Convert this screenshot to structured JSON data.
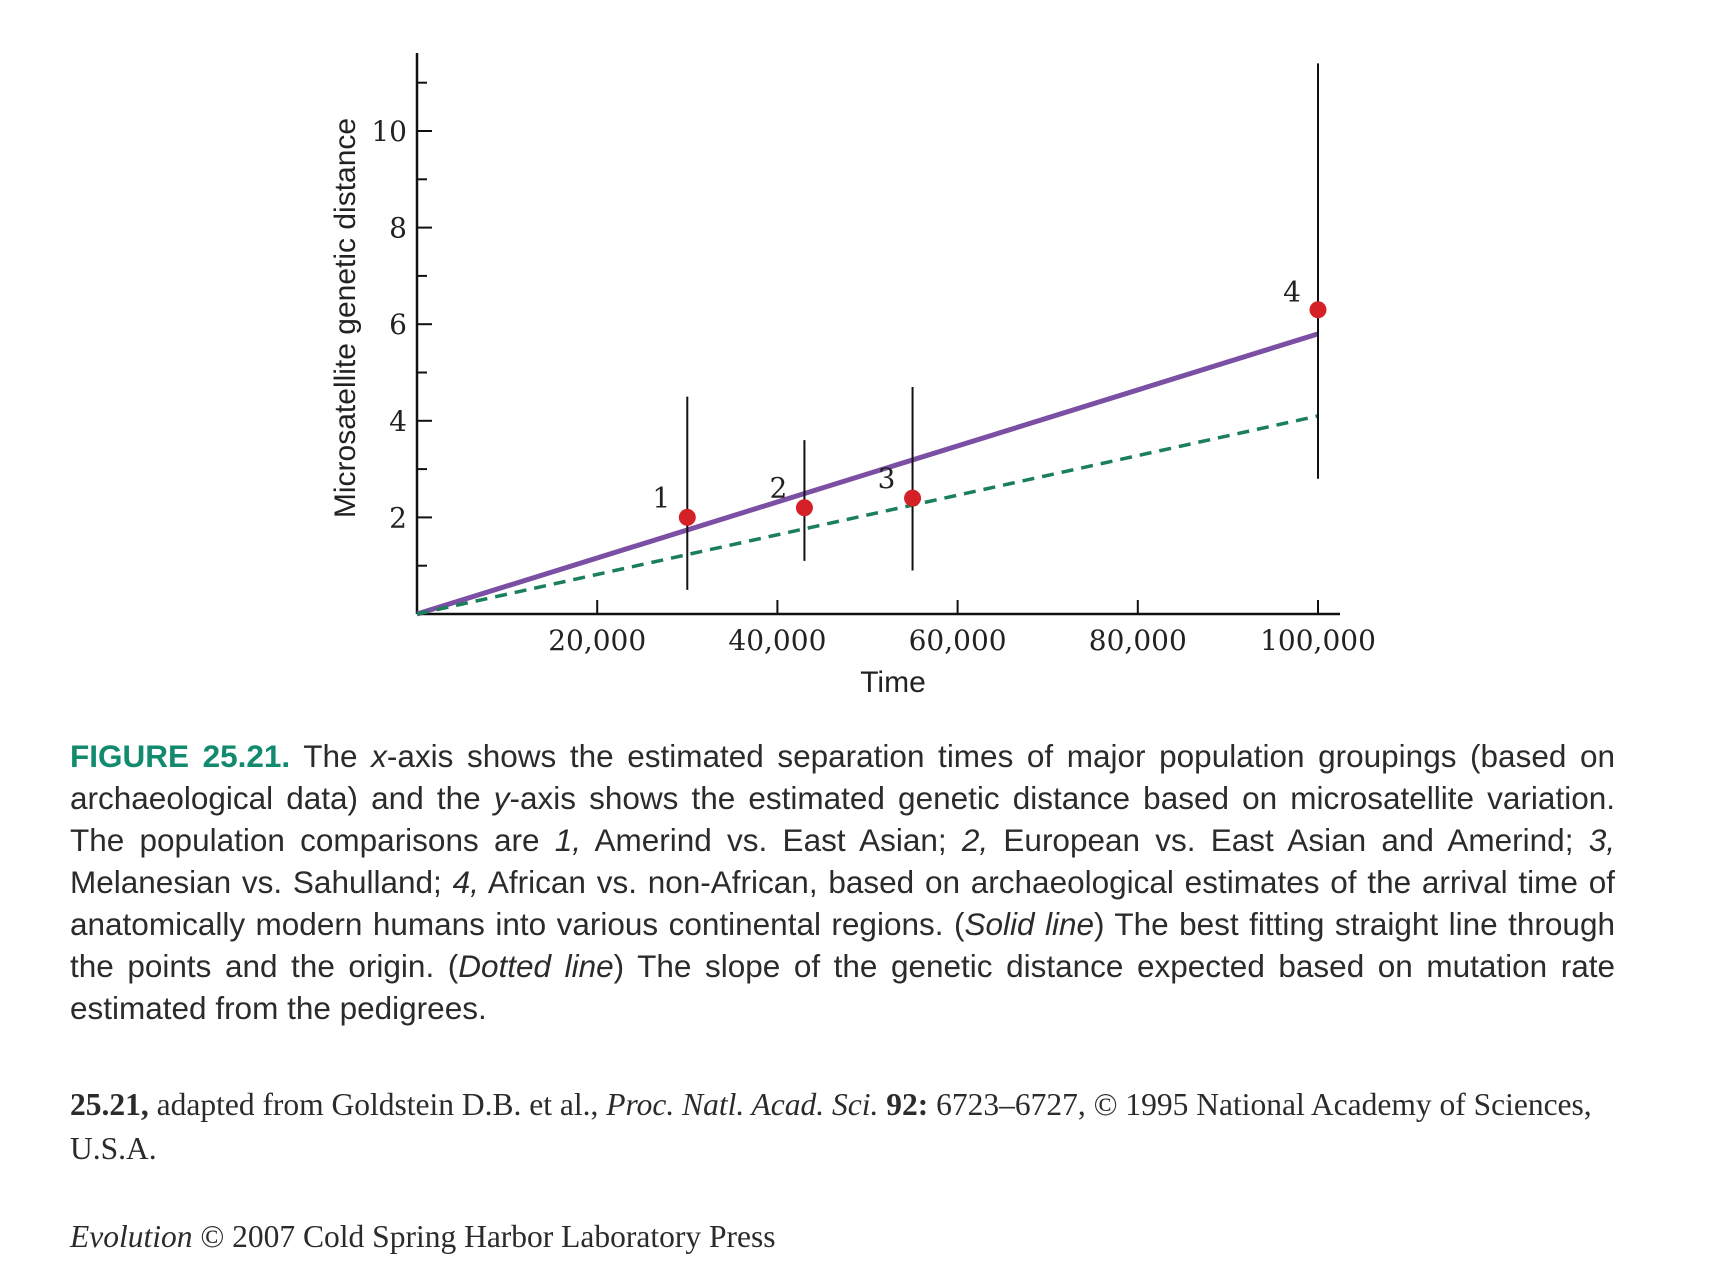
{
  "chart_data": {
    "type": "scatter",
    "xlabel": "Time",
    "ylabel": "Microsatellite genetic distance",
    "xlim": [
      0,
      102000
    ],
    "ylim": [
      0,
      11.5
    ],
    "x_ticks": [
      20000,
      40000,
      60000,
      80000,
      100000
    ],
    "x_tick_labels": [
      "20,000",
      "40,000",
      "60,000",
      "80,000",
      "100,000"
    ],
    "y_ticks": [
      2,
      4,
      6,
      8,
      10
    ],
    "y_tick_labels": [
      "2",
      "4",
      "6",
      "8",
      "10"
    ],
    "y_minor_step": 1,
    "points": [
      {
        "label": "1",
        "x": 30000,
        "y": 2.0,
        "err_low": 0.5,
        "err_high": 4.5
      },
      {
        "label": "2",
        "x": 43000,
        "y": 2.2,
        "err_low": 1.1,
        "err_high": 3.6
      },
      {
        "label": "3",
        "x": 55000,
        "y": 2.4,
        "err_low": 0.9,
        "err_high": 4.7
      },
      {
        "label": "4",
        "x": 100000,
        "y": 6.3,
        "err_low": 2.8,
        "err_high": 11.4
      }
    ],
    "lines": [
      {
        "style": "solid",
        "color": "#7b4fa3",
        "x": [
          0,
          100000
        ],
        "y": [
          0,
          5.8
        ]
      },
      {
        "style": "dashed",
        "color": "#1a7f5a",
        "x": [
          0,
          100000
        ],
        "y": [
          0,
          4.1
        ]
      }
    ],
    "point_color": "#d42027",
    "grid": false
  },
  "caption": {
    "figure_label": "FIGURE 25.21.",
    "text_1": " The ",
    "x_italic": "x",
    "text_2": "-axis shows the estimated separation times of major population groupings (based on archaeological data) and the ",
    "y_italic": "y",
    "text_3": "-axis shows the estimated genetic distance based on microsatellite variation. The population comparisons are ",
    "n1": "1,",
    "text_4": " Amerind vs. East Asian; ",
    "n2": "2,",
    "text_5": " European vs. East Asian and Amerind; ",
    "n3": "3,",
    "text_6": " Melanesian vs. Sahulland; ",
    "n4": "4,",
    "text_7": " African vs. non-African, based on archaeological estimates of the arrival time of anatomically modern humans into various continental regions. (",
    "solid_line": "Solid line",
    "text_8": ") The best fitting straight line through the points and the origin. (",
    "dotted_line": "Dotted line",
    "text_9": ") The slope of the genetic distance expected based on mutation rate estimated from the pedigrees."
  },
  "credit": {
    "bold_label": "25.21,",
    "text_1": " adapted from Goldstein D.B. et al., ",
    "journal": "Proc. Natl. Acad. Sci.",
    "space": " ",
    "volume": "92:",
    "text_2": " 6723–6727, © 1995 National Academy of Sciences, U.S.A."
  },
  "publisher": {
    "book": "Evolution",
    "text": " © 2007 Cold Spring Harbor Laboratory Press"
  }
}
